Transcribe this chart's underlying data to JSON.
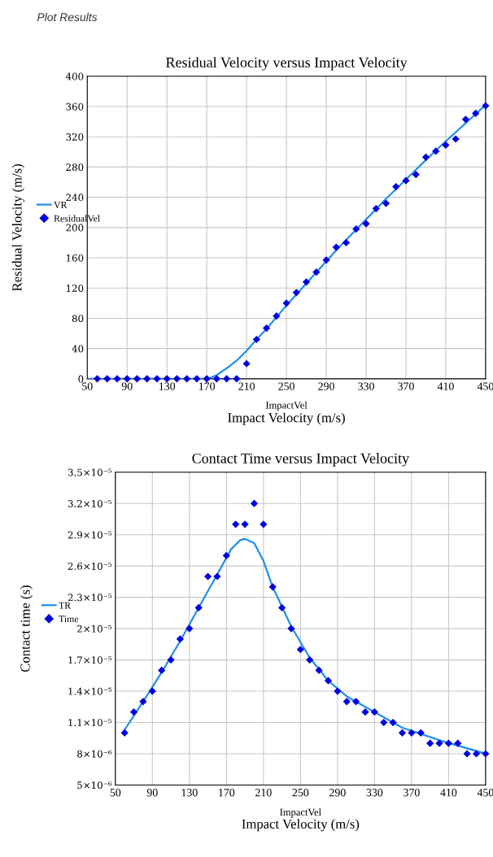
{
  "chart_data": [
    {
      "type": "line",
      "title": "Residual Velocity versus Impact Velocity",
      "xlabel": "Impact Velocity (m/s)",
      "ylabel": "Residual Velocity (m/s)",
      "annotations": [
        "Plot Results",
        "ImpactVel"
      ],
      "xlim": [
        50,
        450
      ],
      "xticks": [
        50,
        90,
        130,
        170,
        210,
        250,
        290,
        330,
        370,
        410,
        450
      ],
      "ylim": [
        0,
        400
      ],
      "yticks": [
        0,
        40,
        80,
        120,
        160,
        200,
        240,
        280,
        320,
        360,
        400
      ],
      "grid": true,
      "legend": "left",
      "series": [
        {
          "name": "VR",
          "type": "line",
          "marker": "none",
          "color": "#1f8fe8",
          "x": [
            50,
            100,
            150,
            170,
            175,
            180,
            190,
            200,
            210,
            220,
            230,
            250,
            300,
            350,
            400,
            450
          ],
          "values": [
            0,
            0,
            0,
            0,
            2,
            5,
            14,
            24,
            37,
            52,
            66,
            97,
            170,
            238,
            302,
            362
          ]
        },
        {
          "name": "ResidualVel",
          "type": "scatter",
          "marker": "diamond",
          "color": "#0000e0",
          "x": [
            60,
            70,
            80,
            90,
            100,
            110,
            120,
            130,
            140,
            150,
            160,
            170,
            180,
            190,
            200,
            210,
            220,
            230,
            240,
            250,
            260,
            270,
            280,
            290,
            300,
            310,
            320,
            330,
            340,
            350,
            360,
            370,
            380,
            390,
            400,
            410,
            420,
            430,
            440,
            450
          ],
          "values": [
            0,
            0,
            0,
            0,
            0,
            0,
            0,
            0,
            0,
            0,
            0,
            0,
            0,
            0,
            0,
            20,
            52,
            67,
            83,
            100,
            114,
            128,
            141,
            157,
            174,
            180,
            198,
            205,
            225,
            232,
            254,
            262,
            270,
            293,
            301,
            309,
            317,
            343,
            351,
            361
          ]
        }
      ]
    },
    {
      "type": "line",
      "title": "Contact Time versus Impact Velocity",
      "xlabel": "Impact Velocity (m/s)",
      "ylabel": "Contact time (s)",
      "annotations": [
        "ImpactVel"
      ],
      "xlim": [
        50,
        450
      ],
      "xticks": [
        50,
        90,
        130,
        170,
        210,
        250,
        290,
        330,
        370,
        410,
        450
      ],
      "ylim": [
        5e-06,
        3.5e-05
      ],
      "yticks": [
        {
          "value": 5e-06,
          "label": "5×10⁻⁶"
        },
        {
          "value": 8e-06,
          "label": "8×10⁻⁶"
        },
        {
          "value": 1.1e-05,
          "label": "1.1×10⁻⁵"
        },
        {
          "value": 1.4e-05,
          "label": "1.4×10⁻⁵"
        },
        {
          "value": 1.7e-05,
          "label": "1.7×10⁻⁵"
        },
        {
          "value": 2e-05,
          "label": "2×10⁻⁵"
        },
        {
          "value": 2.3e-05,
          "label": "2.3×10⁻⁵"
        },
        {
          "value": 2.6e-05,
          "label": "2.6×10⁻⁵"
        },
        {
          "value": 2.9e-05,
          "label": "2.9×10⁻⁵"
        },
        {
          "value": 3.2e-05,
          "label": "3.2×10⁻⁵"
        },
        {
          "value": 3.5e-05,
          "label": "3.5×10⁻⁵"
        }
      ],
      "grid": true,
      "legend": "left",
      "series": [
        {
          "name": "TR",
          "type": "line",
          "marker": "none",
          "color": "#1f8fe8",
          "x": [
            60,
            80,
            100,
            120,
            140,
            160,
            175,
            185,
            190,
            200,
            210,
            220,
            240,
            260,
            280,
            300,
            330,
            360,
            400,
            450
          ],
          "values": [
            1.03e-05,
            1.3e-05,
            1.58e-05,
            1.88e-05,
            2.2e-05,
            2.52e-05,
            2.76e-05,
            2.85e-05,
            2.86e-05,
            2.82e-05,
            2.65e-05,
            2.4e-05,
            2.02e-05,
            1.72e-05,
            1.5e-05,
            1.35e-05,
            1.2e-05,
            1.05e-05,
            9.3e-06,
            8e-06
          ]
        },
        {
          "name": "Time",
          "type": "scatter",
          "marker": "diamond",
          "color": "#0000e0",
          "x": [
            60,
            70,
            80,
            90,
            100,
            110,
            120,
            130,
            140,
            150,
            160,
            170,
            180,
            190,
            200,
            210,
            220,
            230,
            240,
            250,
            260,
            270,
            280,
            290,
            300,
            310,
            320,
            330,
            340,
            350,
            360,
            370,
            380,
            390,
            400,
            410,
            420,
            430,
            440,
            450
          ],
          "values": [
            1e-05,
            1.2e-05,
            1.3e-05,
            1.4e-05,
            1.6e-05,
            1.7e-05,
            1.9e-05,
            2e-05,
            2.2e-05,
            2.5e-05,
            2.5e-05,
            2.7e-05,
            3e-05,
            3e-05,
            3.2e-05,
            3e-05,
            2.4e-05,
            2.2e-05,
            2e-05,
            1.8e-05,
            1.7e-05,
            1.6e-05,
            1.5e-05,
            1.4e-05,
            1.3e-05,
            1.3e-05,
            1.2e-05,
            1.2e-05,
            1.1e-05,
            1.1e-05,
            1e-05,
            1e-05,
            1e-05,
            9e-06,
            9e-06,
            9e-06,
            9e-06,
            8e-06,
            8e-06,
            8e-06
          ]
        }
      ]
    }
  ]
}
